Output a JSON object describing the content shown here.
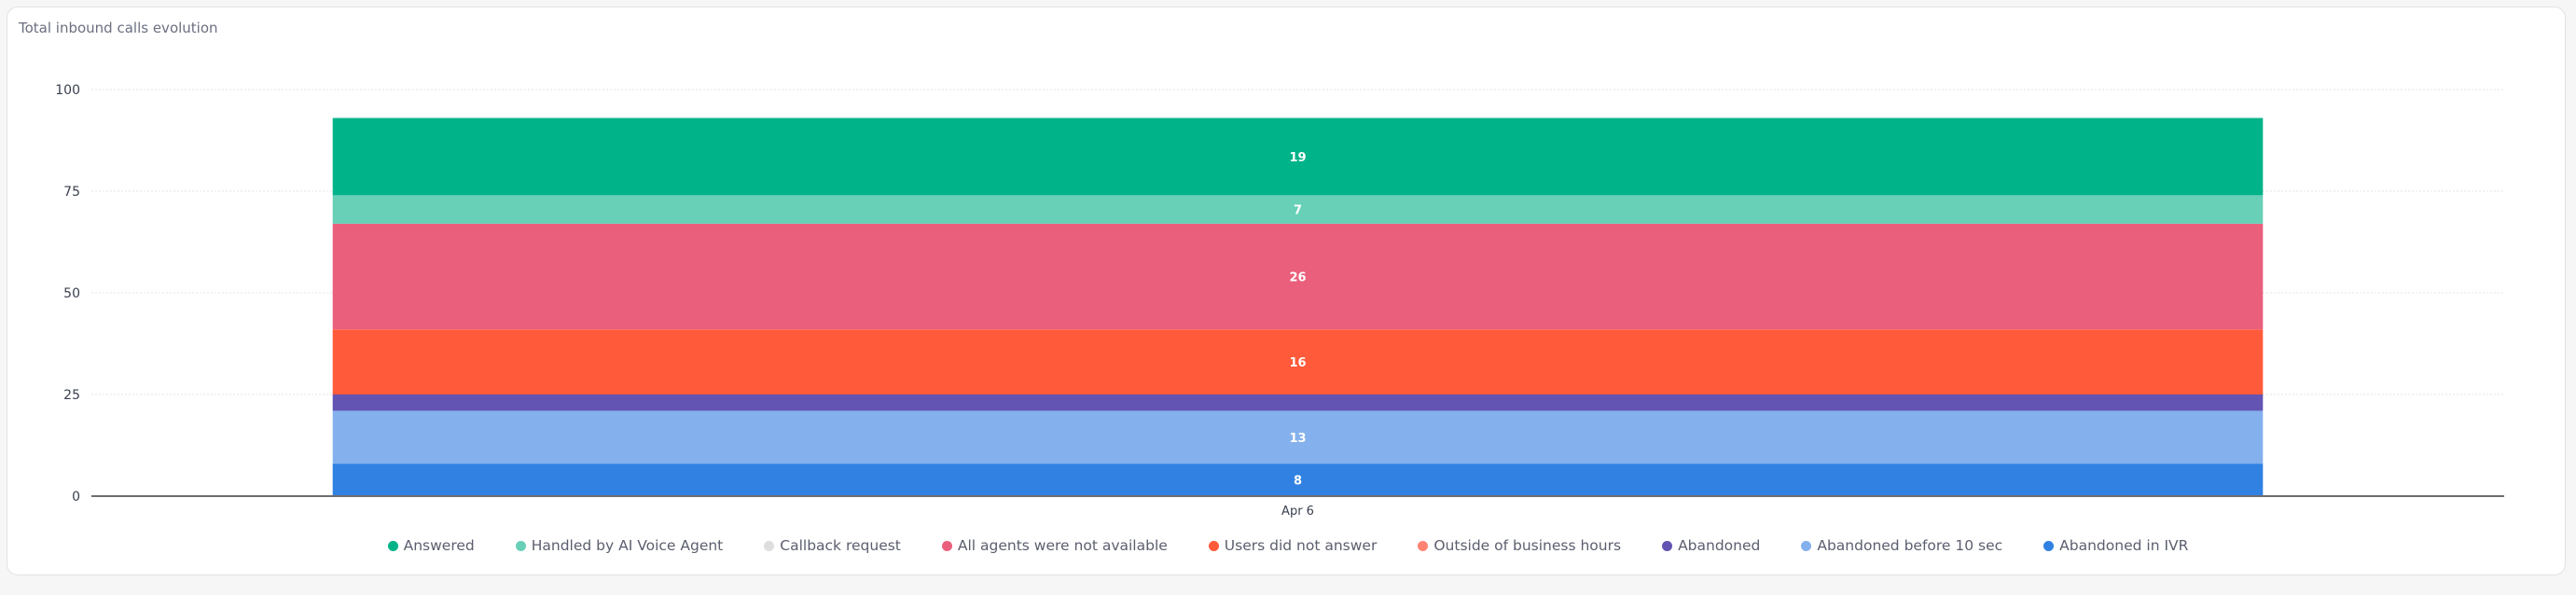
{
  "chart_data": {
    "type": "bar",
    "stacked": true,
    "title": "Total inbound calls evolution",
    "categories": [
      "Apr 6"
    ],
    "ylim": [
      0,
      100
    ],
    "yticks": [
      0,
      25,
      50,
      75,
      100
    ],
    "grid": true,
    "legend_position": "bottom",
    "series": [
      {
        "name": "Answered",
        "color": "#00b388",
        "values": [
          19
        ]
      },
      {
        "name": "Handled by AI Voice Agent",
        "color": "#67d0b7",
        "values": [
          7
        ]
      },
      {
        "name": "Callback request",
        "color": "#dedede",
        "values": [
          0
        ]
      },
      {
        "name": "All agents were not available",
        "color": "#ea5f7b",
        "values": [
          26
        ]
      },
      {
        "name": "Users did not answer",
        "color": "#ff5a39",
        "values": [
          16
        ]
      },
      {
        "name": "Outside of business hours",
        "color": "#ff8273",
        "values": [
          0
        ]
      },
      {
        "name": "Abandoned",
        "color": "#6353b3",
        "values": [
          4
        ]
      },
      {
        "name": "Abandoned before 10 sec",
        "color": "#84b1ed",
        "values": [
          13
        ]
      },
      {
        "name": "Abandoned in IVR",
        "color": "#3081e2",
        "values": [
          8
        ]
      }
    ],
    "data_labels_shown": [
      "Answered",
      "Handled by AI Voice Agent",
      "All agents were not available",
      "Users did not answer",
      "Abandoned before 10 sec",
      "Abandoned in IVR"
    ]
  }
}
